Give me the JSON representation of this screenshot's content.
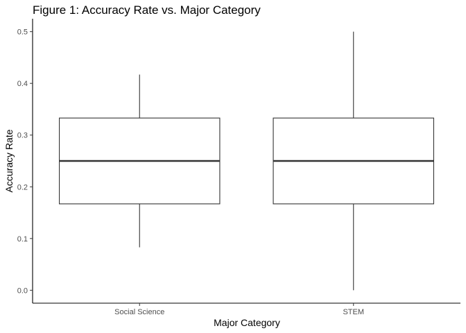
{
  "chart_data": {
    "type": "boxplot",
    "title": "Figure 1: Accuracy Rate vs. Major Category",
    "xlabel": "Major Category",
    "ylabel": "Accuracy Rate",
    "categories": [
      "Social Science",
      "STEM"
    ],
    "boxes": [
      {
        "category": "Social Science",
        "whisker_low": 0.083,
        "q1": 0.167,
        "median": 0.25,
        "q3": 0.333,
        "whisker_high": 0.417
      },
      {
        "category": "STEM",
        "whisker_low": 0.0,
        "q1": 0.167,
        "median": 0.25,
        "q3": 0.333,
        "whisker_high": 0.5
      }
    ],
    "yticks": [
      0.0,
      0.1,
      0.2,
      0.3,
      0.4,
      0.5
    ],
    "ytick_labels": [
      "0.0",
      "0.1",
      "0.2",
      "0.3",
      "0.4",
      "0.5"
    ],
    "ylim": [
      -0.025,
      0.525
    ],
    "grid": false,
    "colors": {
      "box_fill": "#ffffff",
      "box_line": "#333333",
      "axis_line": "#000000",
      "tick_text": "#4d4d4d"
    }
  }
}
